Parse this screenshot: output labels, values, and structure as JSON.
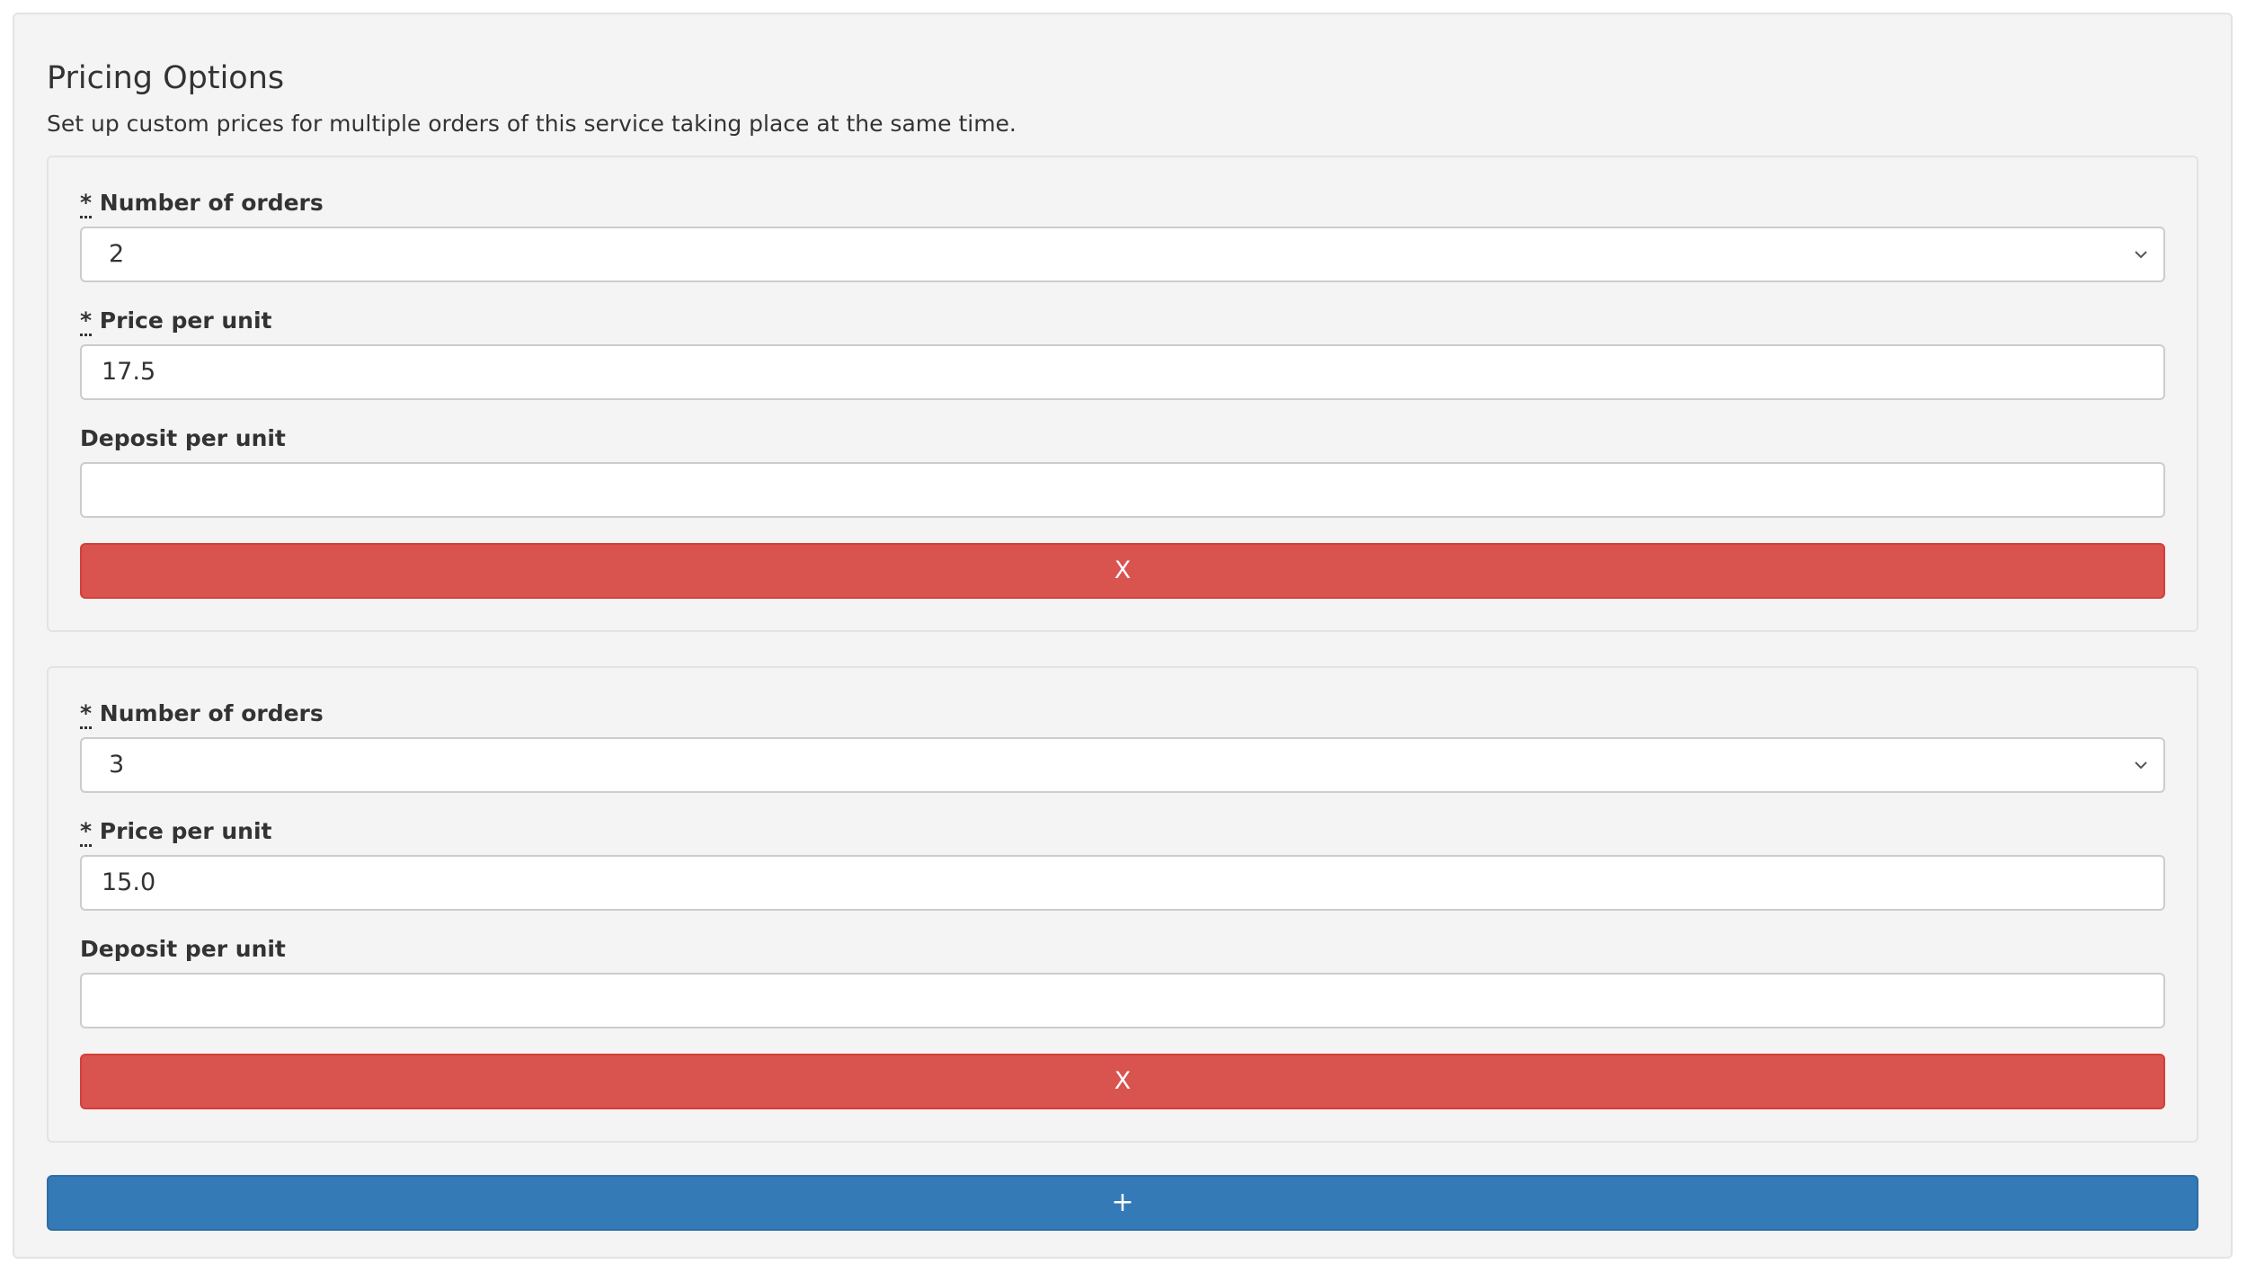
{
  "panel": {
    "title": "Pricing Options",
    "description": "Set up custom prices for multiple orders of this service taking place at the same time."
  },
  "labels": {
    "required_mark": "*",
    "number_of_orders": "Number of orders",
    "price_per_unit": "Price per unit",
    "deposit_per_unit": "Deposit per unit"
  },
  "options": [
    {
      "number_of_orders": "2",
      "price_per_unit": "17.5",
      "deposit_per_unit": "",
      "remove_label": "X"
    },
    {
      "number_of_orders": "3",
      "price_per_unit": "15.0",
      "deposit_per_unit": "",
      "remove_label": "X"
    }
  ],
  "add_button_label": "+",
  "colors": {
    "remove_button": "#d9534f",
    "add_button": "#337ab7",
    "panel_background": "#f4f4f4"
  },
  "icons": {
    "select_arrow": "chevron-down-icon"
  }
}
